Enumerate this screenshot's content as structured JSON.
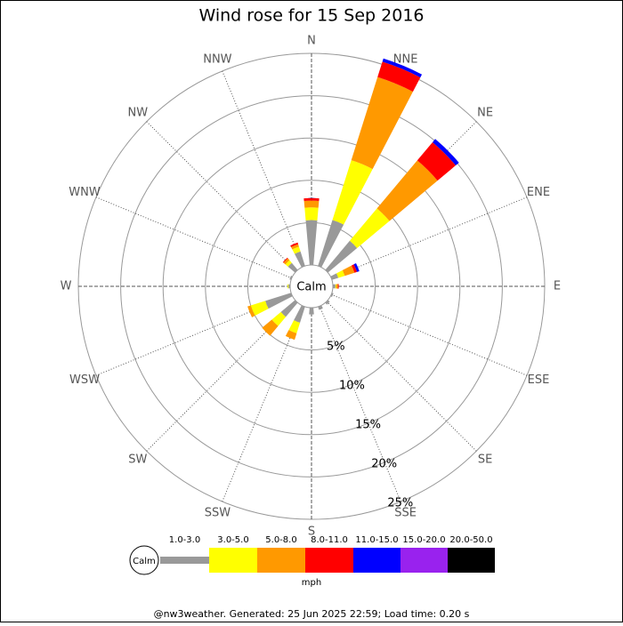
{
  "chart_data": {
    "type": "windrose",
    "title": "Wind rose for 15 Sep 2016",
    "directions": [
      "N",
      "NNE",
      "NE",
      "ENE",
      "E",
      "ESE",
      "SE",
      "SSE",
      "S",
      "SSW",
      "SW",
      "WSW",
      "W",
      "WNW",
      "NW",
      "NNW"
    ],
    "series": [
      {
        "name": "1.0-3.0",
        "color": "#999999",
        "values": [
          5.3,
          5.7,
          4.5,
          0.8,
          0.3,
          0.2,
          0.3,
          0.4,
          0.8,
          2.0,
          2.2,
          3.2,
          0.2,
          0.2,
          1.1,
          1.8
        ]
      },
      {
        "name": "3.0-5.0",
        "color": "#ffff00",
        "values": [
          1.5,
          7.4,
          5.0,
          0.8,
          0.1,
          0,
          0,
          0,
          0,
          1.3,
          1.4,
          1.8,
          0.1,
          0,
          0.4,
          0.6
        ]
      },
      {
        "name": "5.0-8.0",
        "color": "#ff9900",
        "values": [
          0.8,
          10.3,
          7.4,
          1.2,
          0.2,
          0,
          0,
          0,
          0,
          0.8,
          1.5,
          0.4,
          0,
          0,
          0.3,
          0.3
        ]
      },
      {
        "name": "8.0-11.0",
        "color": "#ff0000",
        "values": [
          0.3,
          1.9,
          2.8,
          0.3,
          0.1,
          0,
          0,
          0,
          0,
          0,
          0,
          0,
          0,
          0,
          0.1,
          0.2
        ]
      },
      {
        "name": "11.0-15.0",
        "color": "#0000ff",
        "values": [
          0,
          0.4,
          0.5,
          0.3,
          0,
          0,
          0,
          0,
          0,
          0,
          0,
          0,
          0,
          0,
          0,
          0
        ]
      },
      {
        "name": "15.0-20.0",
        "color": "#9922ee",
        "values": [
          0,
          0,
          0,
          0,
          0,
          0,
          0,
          0,
          0,
          0,
          0,
          0,
          0,
          0,
          0,
          0
        ]
      },
      {
        "name": "20.0-50.0",
        "color": "#000000",
        "values": [
          0,
          0,
          0,
          0,
          0,
          0,
          0,
          0,
          0,
          0,
          0,
          0,
          0,
          0,
          0,
          0
        ]
      }
    ],
    "ylim": [
      0,
      25
    ],
    "yticks": [
      {
        "value": 5,
        "label": "5%"
      },
      {
        "value": 10,
        "label": "10%"
      },
      {
        "value": 15,
        "label": "15%"
      },
      {
        "value": 20,
        "label": "20%"
      },
      {
        "value": 25,
        "label": "25%"
      }
    ],
    "calm_label": "Calm",
    "unit": "mph"
  },
  "footer": "@nw3weather. Generated: 25 Jun 2025 22:59; Load time: 0.20 s"
}
